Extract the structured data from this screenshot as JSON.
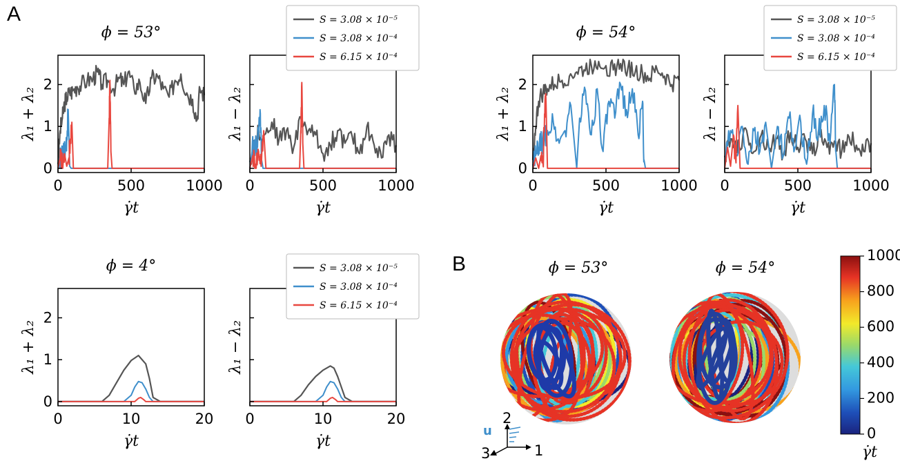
{
  "panel_labels": {
    "A": "A",
    "B": "B"
  },
  "colors": {
    "s1": "#555555",
    "s2": "#3f8fcb",
    "s3": "#e8473f"
  },
  "legend": [
    "S = 3.08 × 10⁻⁵",
    "S = 3.08 × 10⁻⁴",
    "S = 6.15 × 10⁻⁴"
  ],
  "chart_data": [
    {
      "type": "line",
      "title": "ϕ = 53°",
      "xlabel": "γ̇t",
      "ylabel": "λ₁ + λ₂",
      "xlim": [
        0,
        1000
      ],
      "ylim": [
        -0.1,
        2.7
      ],
      "xticks": [
        0,
        500,
        1000
      ],
      "yticks": [
        0,
        1,
        2
      ],
      "yticklabels": true,
      "series": [
        {
          "name": "S = 3.08 × 10⁻⁵",
          "x": [
            0,
            15,
            30,
            45,
            60,
            80,
            100,
            130,
            160,
            200,
            240,
            270,
            300,
            340,
            380,
            420,
            450,
            480,
            520,
            560,
            600,
            640,
            680,
            720,
            760,
            800,
            840,
            880,
            920,
            950,
            970,
            1000
          ],
          "y": [
            0.1,
            0.9,
            1.2,
            1.55,
            1.7,
            1.8,
            1.85,
            1.95,
            2.0,
            2.1,
            2.15,
            2.3,
            2.0,
            2.1,
            1.9,
            2.15,
            2.0,
            2.3,
            1.9,
            2.05,
            1.55,
            2.15,
            2.2,
            1.9,
            1.7,
            2.1,
            2.25,
            1.8,
            1.65,
            1.15,
            1.9,
            1.75
          ]
        },
        {
          "name": "S = 3.08 × 10⁻⁴",
          "x": [
            0,
            10,
            20,
            30,
            40,
            50,
            60,
            70,
            80,
            90,
            100,
            1000
          ],
          "y": [
            0.0,
            0.15,
            0.3,
            0.2,
            0.6,
            0.4,
            0.7,
            1.4,
            0.05,
            0.0,
            0.0,
            0.0
          ]
        },
        {
          "name": "S = 6.15 × 10⁻⁴",
          "x": [
            0,
            15,
            30,
            45,
            60,
            75,
            85,
            95,
            105,
            340,
            350,
            355,
            362,
            370,
            1000
          ],
          "y": [
            0.0,
            0.25,
            0.1,
            0.35,
            0.05,
            0.25,
            0.7,
            1.1,
            0.0,
            0.0,
            1.2,
            2.1,
            0.4,
            0.0,
            0.0
          ]
        }
      ]
    },
    {
      "type": "line",
      "title": "",
      "xlabel": "γ̇t",
      "ylabel": "λ₁ − λ₂",
      "xlim": [
        0,
        1000
      ],
      "ylim": [
        -0.1,
        2.7
      ],
      "xticks": [
        0,
        500,
        1000
      ],
      "yticks": [
        0,
        1,
        2
      ],
      "yticklabels": false,
      "series": [
        {
          "name": "S = 3.08 × 10⁻⁵",
          "x": [
            0,
            30,
            60,
            100,
            150,
            200,
            250,
            300,
            350,
            400,
            450,
            500,
            550,
            600,
            650,
            700,
            750,
            800,
            850,
            900,
            950,
            1000
          ],
          "y": [
            0.15,
            0.5,
            0.9,
            0.8,
            1.1,
            0.7,
            0.9,
            0.5,
            1.2,
            0.9,
            0.8,
            0.35,
            0.55,
            0.9,
            0.6,
            0.75,
            0.35,
            1.0,
            0.55,
            0.25,
            0.8,
            0.55
          ]
        },
        {
          "name": "S = 3.08 × 10⁻⁴",
          "x": [
            0,
            15,
            30,
            45,
            60,
            70,
            80,
            90,
            100,
            1000
          ],
          "y": [
            0.0,
            0.4,
            0.6,
            0.5,
            0.9,
            1.4,
            0.2,
            0.0,
            0.0,
            0.0
          ]
        },
        {
          "name": "S = 6.15 × 10⁻⁴",
          "x": [
            0,
            20,
            40,
            60,
            80,
            95,
            110,
            340,
            348,
            355,
            362,
            370,
            1000
          ],
          "y": [
            0.0,
            0.3,
            0.1,
            0.4,
            0.2,
            0.9,
            0.0,
            0.0,
            0.9,
            2.05,
            0.6,
            0.0,
            0.0
          ]
        }
      ]
    },
    {
      "type": "line",
      "title": "ϕ = 54°",
      "xlabel": "γ̇t",
      "ylabel": "λ₁ + λ₂",
      "xlim": [
        0,
        1000
      ],
      "ylim": [
        -0.1,
        2.7
      ],
      "xticks": [
        0,
        500,
        1000
      ],
      "yticks": [
        0,
        1,
        2
      ],
      "yticklabels": true,
      "series": [
        {
          "name": "S = 3.08 × 10⁻⁵",
          "x": [
            0,
            20,
            40,
            70,
            100,
            150,
            200,
            250,
            300,
            350,
            400,
            450,
            500,
            550,
            600,
            650,
            700,
            750,
            800,
            850,
            900,
            950,
            1000
          ],
          "y": [
            0.2,
            1.0,
            1.6,
            1.8,
            1.9,
            2.0,
            2.1,
            2.2,
            2.3,
            2.35,
            2.45,
            2.55,
            2.45,
            2.35,
            2.5,
            2.4,
            2.3,
            2.25,
            2.15,
            2.35,
            2.2,
            2.0,
            2.1
          ]
        },
        {
          "name": "S = 3.08 × 10⁻⁴",
          "x": [
            0,
            20,
            40,
            60,
            80,
            100,
            140,
            180,
            220,
            260,
            300,
            320,
            360,
            400,
            440,
            480,
            520,
            560,
            600,
            640,
            680,
            720,
            750,
            760,
            770,
            1000
          ],
          "y": [
            0.1,
            0.3,
            0.5,
            0.6,
            0.7,
            0.9,
            1.1,
            0.6,
            0.9,
            1.5,
            0.0,
            1.2,
            1.85,
            0.8,
            1.9,
            0.4,
            1.6,
            1.2,
            2.0,
            1.4,
            1.9,
            0.8,
            1.6,
            0.2,
            0.0,
            0.0
          ]
        },
        {
          "name": "S = 6.15 × 10⁻⁴",
          "x": [
            0,
            20,
            40,
            55,
            70,
            80,
            90,
            100,
            110,
            1000
          ],
          "y": [
            0.0,
            0.25,
            0.0,
            0.3,
            0.1,
            1.3,
            1.6,
            0.0,
            0.0,
            0.0
          ]
        }
      ]
    },
    {
      "type": "line",
      "title": "",
      "xlabel": "γ̇t",
      "ylabel": "λ₁ − λ₂",
      "xlim": [
        0,
        1000
      ],
      "ylim": [
        -0.1,
        2.7
      ],
      "xticks": [
        0,
        500,
        1000
      ],
      "yticks": [
        0,
        1,
        2
      ],
      "yticklabels": false,
      "series": [
        {
          "name": "S = 3.08 × 10⁻⁵",
          "x": [
            0,
            50,
            100,
            150,
            200,
            250,
            300,
            350,
            400,
            450,
            500,
            550,
            600,
            650,
            700,
            750,
            800,
            850,
            900,
            950,
            1000
          ],
          "y": [
            0.3,
            0.7,
            0.5,
            0.9,
            0.4,
            0.8,
            0.5,
            0.7,
            0.3,
            0.85,
            0.5,
            0.7,
            0.35,
            0.8,
            0.5,
            0.65,
            0.4,
            0.75,
            0.55,
            0.4,
            0.6
          ]
        },
        {
          "name": "S = 3.08 × 10⁻⁴",
          "x": [
            0,
            40,
            80,
            120,
            160,
            200,
            240,
            280,
            320,
            360,
            400,
            440,
            480,
            520,
            560,
            600,
            640,
            680,
            720,
            750,
            760,
            770,
            1000
          ],
          "y": [
            0.2,
            0.9,
            0.3,
            1.0,
            0.1,
            0.9,
            0.4,
            1.1,
            0.0,
            1.0,
            0.3,
            1.2,
            0.5,
            1.1,
            0.1,
            1.3,
            0.8,
            1.5,
            0.6,
            2.0,
            0.4,
            0.0,
            0.0
          ]
        },
        {
          "name": "S = 6.15 × 10⁻⁴",
          "x": [
            0,
            20,
            40,
            60,
            75,
            90,
            105,
            1000
          ],
          "y": [
            0.0,
            0.5,
            0.05,
            0.8,
            0.2,
            1.5,
            0.0,
            0.0
          ]
        }
      ]
    },
    {
      "type": "line",
      "title": "ϕ = 4°",
      "xlabel": "γ̇t",
      "ylabel": "λ₁ + λ₂",
      "xlim": [
        0,
        20
      ],
      "ylim": [
        -0.1,
        2.7
      ],
      "xticks": [
        0,
        10,
        20
      ],
      "yticks": [
        0,
        1,
        2
      ],
      "yticklabels": true,
      "series": [
        {
          "name": "S = 3.08 × 10⁻⁵",
          "x": [
            0,
            6,
            7,
            8,
            9,
            10,
            11,
            12,
            12.5,
            13,
            14,
            20
          ],
          "y": [
            0,
            0,
            0.15,
            0.45,
            0.75,
            0.98,
            1.1,
            0.9,
            0.55,
            0.1,
            0,
            0
          ]
        },
        {
          "name": "S = 3.08 × 10⁻⁴",
          "x": [
            0,
            9,
            10,
            10.5,
            11,
            11.5,
            12,
            12.5,
            13,
            20
          ],
          "y": [
            0,
            0,
            0.15,
            0.35,
            0.48,
            0.45,
            0.3,
            0.1,
            0,
            0
          ]
        },
        {
          "name": "S = 6.15 × 10⁻⁴",
          "x": [
            0,
            10.5,
            11,
            11.3,
            11.7,
            12,
            20
          ],
          "y": [
            0,
            0,
            0.08,
            0.1,
            0.05,
            0,
            0
          ]
        }
      ]
    },
    {
      "type": "line",
      "title": "",
      "xlabel": "γ̇t",
      "ylabel": "λ₁ − λ₂",
      "xlim": [
        0,
        20
      ],
      "ylim": [
        -0.1,
        2.7
      ],
      "xticks": [
        0,
        10,
        20
      ],
      "yticks": [
        0,
        1,
        2
      ],
      "yticklabels": false,
      "series": [
        {
          "name": "S = 3.08 × 10⁻⁵",
          "x": [
            0,
            6,
            7,
            8,
            9,
            10,
            11,
            11.5,
            12,
            12.5,
            13,
            14,
            20
          ],
          "y": [
            0,
            0,
            0.15,
            0.4,
            0.6,
            0.75,
            0.85,
            0.8,
            0.6,
            0.35,
            0.1,
            0,
            0
          ]
        },
        {
          "name": "S = 3.08 × 10⁻⁴",
          "x": [
            0,
            9,
            10,
            10.5,
            11,
            11.5,
            12,
            12.5,
            13,
            20
          ],
          "y": [
            0,
            0,
            0.15,
            0.35,
            0.48,
            0.45,
            0.3,
            0.1,
            0,
            0
          ]
        },
        {
          "name": "S = 6.15 × 10⁻⁴",
          "x": [
            0,
            10.5,
            11,
            11.3,
            11.7,
            12,
            20
          ],
          "y": [
            0,
            0,
            0.08,
            0.1,
            0.05,
            0,
            0
          ]
        }
      ]
    }
  ],
  "panel_b": {
    "titles": [
      "ϕ = 53°",
      "ϕ = 54°"
    ],
    "axes_labels": {
      "u": "u",
      "a1": "1",
      "a2": "2",
      "a3": "3"
    },
    "colorbar": {
      "ticks": [
        0,
        200,
        400,
        600,
        800,
        1000
      ],
      "label": "γ̇t",
      "min": 0,
      "max": 1000
    }
  }
}
